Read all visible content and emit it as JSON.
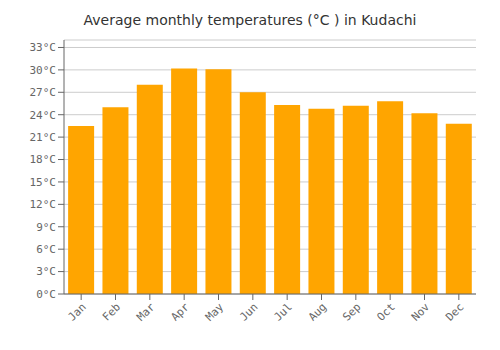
{
  "chart_data": {
    "type": "bar",
    "title": "Average monthly temperatures (°C ) in Kudachi",
    "categories": [
      "Jan",
      "Feb",
      "Mar",
      "Apr",
      "May",
      "Jun",
      "Jul",
      "Aug",
      "Sep",
      "Oct",
      "Nov",
      "Dec"
    ],
    "values": [
      22.5,
      25.0,
      28.0,
      30.2,
      30.1,
      27.0,
      25.3,
      24.8,
      25.2,
      25.8,
      24.2,
      22.8
    ],
    "color": "#FFA500",
    "ylim": [
      0,
      34
    ],
    "yticks": [
      {
        "value": 0,
        "label": "0°C"
      },
      {
        "value": 3,
        "label": "3°C"
      },
      {
        "value": 6,
        "label": "6°C"
      },
      {
        "value": 9,
        "label": "9°C"
      },
      {
        "value": 12,
        "label": "12°C"
      },
      {
        "value": 15,
        "label": "15°C"
      },
      {
        "value": 18,
        "label": "18°C"
      },
      {
        "value": 21,
        "label": "21°C"
      },
      {
        "value": 24,
        "label": "24°C"
      },
      {
        "value": 27,
        "label": "27°C"
      },
      {
        "value": 30,
        "label": "30°C"
      },
      {
        "value": 33,
        "label": "33°C"
      }
    ],
    "grid": true
  }
}
